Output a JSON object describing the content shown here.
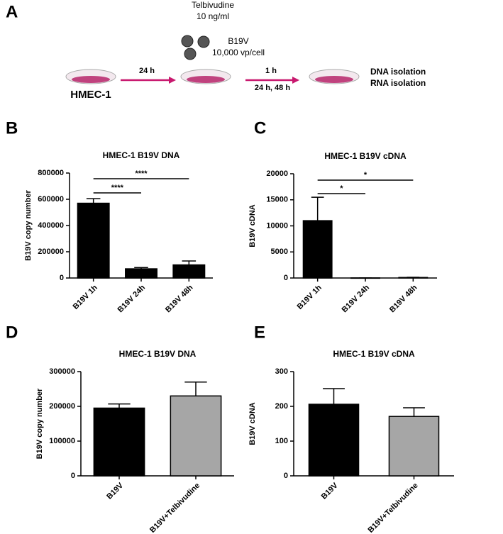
{
  "panels": [
    "A",
    "B",
    "C",
    "D",
    "E"
  ],
  "schematic": {
    "drug": "Telbivudine",
    "dose": "10 ng/ml",
    "virus": "B19V",
    "moi": "10,000 vp/cell",
    "step1": "24 h",
    "step2": "1 h",
    "step3": "24 h,  48 h",
    "cells": "HMEC-1",
    "readout1": "DNA isolation",
    "readout2": "RNA isolation"
  },
  "chart_data": [
    {
      "type": "bar",
      "title": "HMEC-1 B19V DNA",
      "ylabel": "B19V  copy number",
      "categories": [
        "B19V 1h",
        "B19V 24h",
        "B19V 48h"
      ],
      "values": [
        570000,
        70000,
        100000
      ],
      "errors": [
        35000,
        10000,
        30000
      ],
      "colors": [
        "#000000",
        "#000000",
        "#000000"
      ],
      "ylim": [
        0,
        800000
      ],
      "yticks": [
        0,
        200000,
        400000,
        600000,
        800000
      ],
      "annotations": [
        "****",
        "****"
      ]
    },
    {
      "type": "bar",
      "title": "HMEC-1 B19V cDNA",
      "ylabel": "B19V cDNA",
      "categories": [
        "B19V 1h",
        "B19V 24h",
        "B19V 48h"
      ],
      "values": [
        11000,
        20,
        100
      ],
      "errors": [
        4500,
        10,
        40
      ],
      "colors": [
        "#000000",
        "#000000",
        "#000000"
      ],
      "ylim": [
        0,
        20000
      ],
      "yticks": [
        0,
        5000,
        10000,
        15000,
        20000
      ],
      "annotations": [
        "*",
        "*"
      ]
    },
    {
      "type": "bar",
      "title": "HMEC-1 B19V DNA",
      "ylabel": "B19V copy number",
      "categories": [
        "B19V",
        "B19V+Telbivudine"
      ],
      "values": [
        195000,
        230000
      ],
      "errors": [
        12000,
        40000
      ],
      "colors": [
        "#000000",
        "#a6a6a6"
      ],
      "ylim": [
        0,
        300000
      ],
      "yticks": [
        0,
        100000,
        200000,
        300000
      ]
    },
    {
      "type": "bar",
      "title": "HMEC-1 B19V cDNA",
      "ylabel": "B19V cDNA",
      "categories": [
        "B19V",
        "B19V+Telbivudine"
      ],
      "values": [
        206,
        171
      ],
      "errors": [
        45,
        25
      ],
      "colors": [
        "#000000",
        "#a6a6a6"
      ],
      "ylim": [
        0,
        300
      ],
      "yticks": [
        0,
        100,
        200,
        300
      ]
    }
  ]
}
